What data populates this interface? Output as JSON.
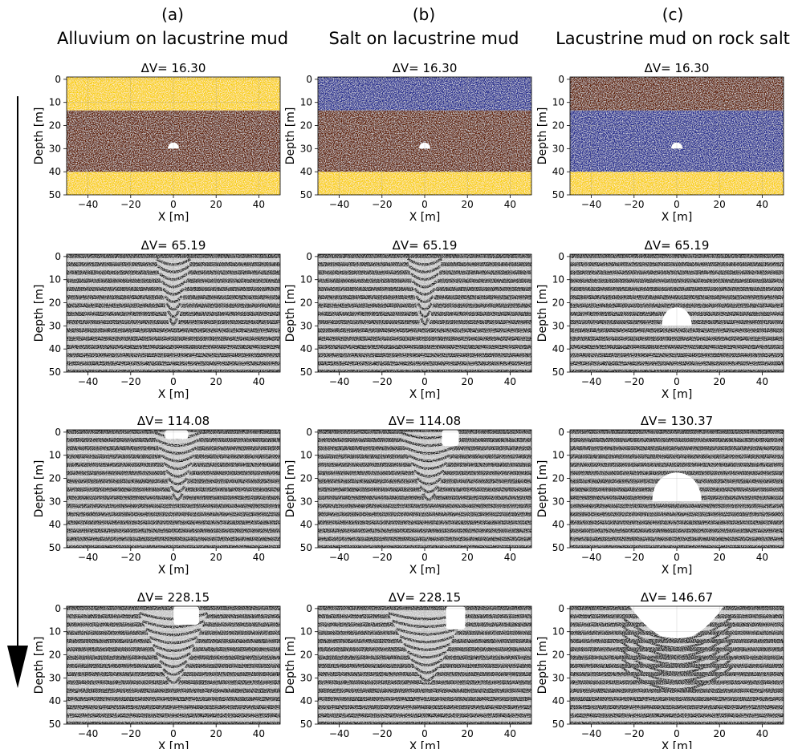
{
  "columns": [
    {
      "letter": "(a)",
      "title": "Alluvium on lacustrine mud"
    },
    {
      "letter": "(b)",
      "title": "Salt on lacustrine mud"
    },
    {
      "letter": "(c)",
      "title": "Lacustrine mud on rock salt"
    }
  ],
  "axes": {
    "xlabel": "X [m]",
    "ylabel": "Depth [m]",
    "xticks": [
      "−40",
      "−20",
      "0",
      "20",
      "40"
    ],
    "xtick_values": [
      -40,
      -20,
      0,
      20,
      40
    ],
    "yticks": [
      "0",
      "10",
      "20",
      "30",
      "40",
      "50"
    ],
    "ytick_values": [
      0,
      10,
      20,
      30,
      40,
      50
    ],
    "xlim": [
      -50,
      50
    ],
    "ylim": [
      50,
      -1
    ]
  },
  "colors": {
    "alluvium": "#f9cf10",
    "lacustrine_mud": "#5e1f06",
    "rock_salt": "#232a8f",
    "stripe_dark": "#1c1c1c",
    "stripe_light": "#c3c3c3",
    "void": "#ffffff",
    "arrow": "#000000"
  },
  "panels": [
    {
      "row": 0,
      "col": 0,
      "title": "ΔV= 16.30",
      "style": "material",
      "layers": [
        {
          "top": -1,
          "bottom": 13.5,
          "material": "alluvium"
        },
        {
          "top": 13.5,
          "bottom": 40,
          "material": "lacustrine_mud"
        },
        {
          "top": 40,
          "bottom": 50,
          "material": "alluvium"
        }
      ],
      "void": {
        "cx": 0,
        "base": 30,
        "halfwidth": 2.6,
        "height": 2.8
      }
    },
    {
      "row": 0,
      "col": 1,
      "title": "ΔV= 16.30",
      "style": "material",
      "layers": [
        {
          "top": -1,
          "bottom": 13.5,
          "material": "rock_salt"
        },
        {
          "top": 13.5,
          "bottom": 40,
          "material": "lacustrine_mud"
        },
        {
          "top": 40,
          "bottom": 50,
          "material": "alluvium"
        }
      ],
      "void": {
        "cx": 0,
        "base": 30,
        "halfwidth": 2.6,
        "height": 2.8
      }
    },
    {
      "row": 0,
      "col": 2,
      "title": "ΔV= 16.30",
      "style": "material",
      "layers": [
        {
          "top": -1,
          "bottom": 13.5,
          "material": "lacustrine_mud"
        },
        {
          "top": 13.5,
          "bottom": 40,
          "material": "rock_salt"
        },
        {
          "top": 40,
          "bottom": 50,
          "material": "alluvium"
        }
      ],
      "void": {
        "cx": 0,
        "base": 30,
        "halfwidth": 2.6,
        "height": 2.8
      }
    },
    {
      "row": 1,
      "col": 0,
      "title": "ΔV= 65.19",
      "style": "stripes",
      "funnel": {
        "cx": 0,
        "top": 1,
        "bottom": 30,
        "halfwidth": 8
      }
    },
    {
      "row": 1,
      "col": 1,
      "title": "ΔV= 65.19",
      "style": "stripes",
      "funnel": {
        "cx": 0,
        "top": 1,
        "bottom": 30,
        "halfwidth": 8
      }
    },
    {
      "row": 1,
      "col": 2,
      "title": "ΔV= 65.19",
      "style": "stripes",
      "void": {
        "cx": 0,
        "base": 30,
        "halfwidth": 7,
        "height": 10
      }
    },
    {
      "row": 2,
      "col": 0,
      "title": "ΔV= 114.08",
      "style": "stripes",
      "funnel": {
        "cx": 2,
        "top": 0,
        "bottom": 30,
        "halfwidth": 11
      },
      "gaps": [
        {
          "x1": -4,
          "x2": 7,
          "y1": -1,
          "y2": 3
        }
      ]
    },
    {
      "row": 2,
      "col": 1,
      "title": "ΔV= 114.08",
      "style": "stripes",
      "funnel": {
        "cx": 2,
        "top": 0,
        "bottom": 30,
        "halfwidth": 14
      },
      "gaps": [
        {
          "x1": 8,
          "x2": 16,
          "y1": -1,
          "y2": 6
        }
      ]
    },
    {
      "row": 2,
      "col": 2,
      "title": "ΔV= 130.37",
      "style": "stripes",
      "void": {
        "cx": 0,
        "base": 30,
        "halfwidth": 11.5,
        "height": 16
      }
    },
    {
      "row": 3,
      "col": 0,
      "title": "ΔV= 228.15",
      "style": "stripes",
      "funnel": {
        "cx": 0,
        "top": 2,
        "bottom": 33,
        "halfwidth": 16
      },
      "gaps": [
        {
          "x1": 0,
          "x2": 12,
          "y1": -1,
          "y2": 7
        }
      ]
    },
    {
      "row": 3,
      "col": 1,
      "title": "ΔV= 228.15",
      "style": "stripes",
      "funnel": {
        "cx": 1,
        "top": 2,
        "bottom": 32,
        "halfwidth": 18
      },
      "gaps": [
        {
          "x1": 10,
          "x2": 19,
          "y1": -1,
          "y2": 9
        }
      ]
    },
    {
      "row": 3,
      "col": 2,
      "title": "ΔV= 146.67",
      "style": "subsidence",
      "basin": {
        "cx": 0,
        "halfwidth": 22,
        "depth": 14
      }
    }
  ]
}
